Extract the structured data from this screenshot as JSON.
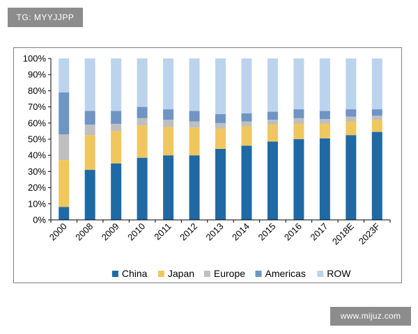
{
  "watermarks": {
    "top": "TG: MYYJJPP",
    "bottom": "www.mijuz.com"
  },
  "chart_data": {
    "type": "bar",
    "stacked": true,
    "title": "",
    "xlabel": "",
    "ylabel": "",
    "ylim": [
      0,
      100
    ],
    "yticks": [
      "0%",
      "10%",
      "20%",
      "30%",
      "40%",
      "50%",
      "60%",
      "70%",
      "80%",
      "90%",
      "100%"
    ],
    "grid": false,
    "legend": "bottom",
    "categories": [
      "2000",
      "2008",
      "2009",
      "2010",
      "2011",
      "2012",
      "2013",
      "2014",
      "2015",
      "2016",
      "2017",
      "2018E",
      "2023F"
    ],
    "series": [
      {
        "name": "China",
        "color": "#1f6aa5",
        "values": [
          8,
          31,
          35,
          38.5,
          40,
          40,
          44,
          46,
          48.5,
          50,
          50.5,
          52.5,
          54.5
        ]
      },
      {
        "name": "Japan",
        "color": "#f0c75e",
        "values": [
          29,
          21.5,
          20,
          20,
          17.5,
          17,
          12.5,
          12,
          10.5,
          9.5,
          9,
          8.5,
          7.5
        ]
      },
      {
        "name": "Europe",
        "color": "#bfbfbf",
        "values": [
          16,
          6.5,
          4.5,
          4.5,
          4.5,
          4,
          3.5,
          3,
          3,
          3.5,
          3,
          3,
          2.5
        ]
      },
      {
        "name": "Americas",
        "color": "#6f95c4",
        "values": [
          26,
          8.5,
          8,
          7,
          6.5,
          6.5,
          5.5,
          5,
          5,
          5.5,
          5,
          4.5,
          4
        ]
      },
      {
        "name": "ROW",
        "color": "#bcd3ee",
        "values": [
          21,
          32.5,
          32.5,
          30,
          31.5,
          32.5,
          34.5,
          34,
          33,
          31.5,
          32.5,
          31.5,
          31.5
        ]
      }
    ]
  }
}
